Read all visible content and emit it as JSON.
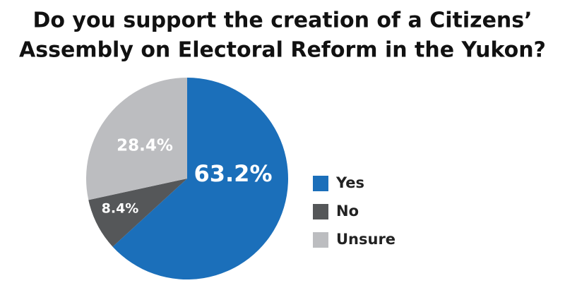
{
  "chart_data": {
    "type": "pie",
    "title": [
      "Do you support the creation of a Citizens’",
      "Assembly on Electoral Reform in the Yukon?"
    ],
    "categories": [
      "Yes",
      "No",
      "Unsure"
    ],
    "values": [
      63.2,
      8.4,
      28.4
    ],
    "value_labels": [
      "63.2%",
      "8.4%",
      "28.4%"
    ],
    "colors": [
      "#1b6fba",
      "#555759",
      "#bcbdc0"
    ],
    "legend": "right"
  }
}
